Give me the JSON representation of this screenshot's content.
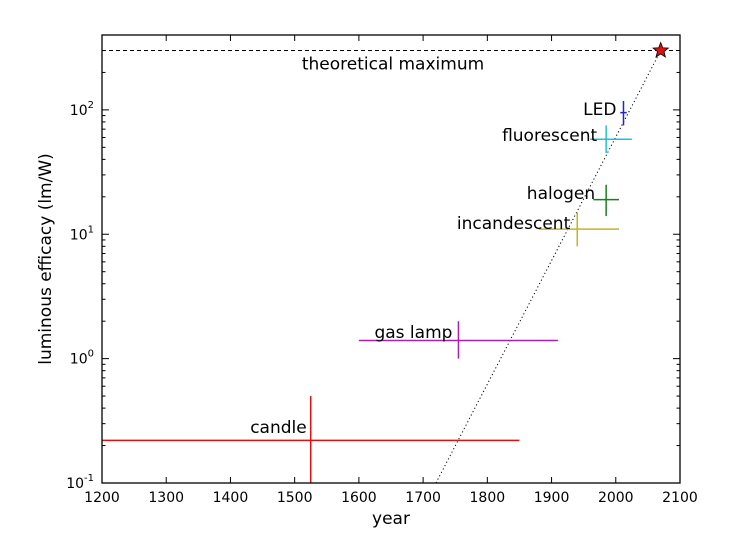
{
  "chart_data": {
    "type": "scatter",
    "title": "",
    "xlabel": "year",
    "ylabel": "luminous efficacy (lm/W)",
    "xlim": [
      1200,
      2100
    ],
    "ylim": [
      0.1,
      400
    ],
    "yscale": "log",
    "grid": false,
    "legend": "none",
    "x_ticks": [
      1200,
      1300,
      1400,
      1500,
      1600,
      1700,
      1800,
      1900,
      2000,
      2100
    ],
    "y_ticks": [
      {
        "value": 0.1,
        "base": "10",
        "exp": "-1"
      },
      {
        "value": 1,
        "base": "10",
        "exp": "0"
      },
      {
        "value": 10,
        "base": "10",
        "exp": "1"
      },
      {
        "value": 100,
        "base": "10",
        "exp": "2"
      }
    ],
    "points": [
      {
        "label": "candle",
        "x": 1525,
        "y": 0.22,
        "x_low": 1200,
        "x_high": 1850,
        "y_low": 0.1,
        "y_high": 0.5,
        "color": "#dd1111"
      },
      {
        "label": "gas lamp",
        "x": 1755,
        "y": 1.4,
        "x_low": 1600,
        "x_high": 1910,
        "y_low": 1.0,
        "y_high": 2.0,
        "color": "#aa22aa"
      },
      {
        "label": "incandescent",
        "x": 1940,
        "y": 11,
        "x_low": 1880,
        "x_high": 2005,
        "y_low": 8,
        "y_high": 15,
        "color": "#c8b41e"
      },
      {
        "label": "halogen",
        "x": 1985,
        "y": 19,
        "x_low": 1965,
        "x_high": 2005,
        "y_low": 14,
        "y_high": 25,
        "color": "#1a7f1a"
      },
      {
        "label": "fluorescent",
        "x": 1985,
        "y": 58,
        "x_low": 1960,
        "x_high": 2025,
        "y_low": 45,
        "y_high": 75,
        "color": "#22c0d0"
      },
      {
        "label": "LED",
        "x": 2012,
        "y": 95,
        "x_low": 2007,
        "x_high": 2017,
        "y_low": 75,
        "y_high": 118,
        "color": "#2222dd"
      }
    ],
    "theoretical_maximum": {
      "label": "theoretical maximum",
      "y": 300,
      "star_x": 2070,
      "star_color": "#dd1111"
    },
    "trend_line": {
      "x1": 1720,
      "y1": 0.1,
      "x2": 2070,
      "y2": 300,
      "style": "dotted"
    }
  }
}
